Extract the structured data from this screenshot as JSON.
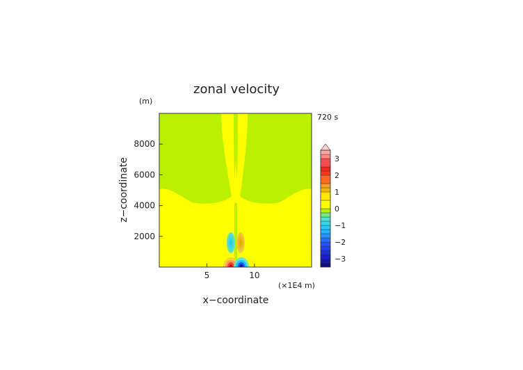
{
  "chart_data": {
    "type": "heatmap",
    "title": "zonal velocity",
    "time_label": "720 s",
    "xlabel": "x−coordinate",
    "ylabel": "z−coordinate",
    "x_units": "(×1E4 m)",
    "y_units": "(m)",
    "xlim": [
      0,
      16
    ],
    "ylim": [
      0,
      10000
    ],
    "x_ticks": [
      5,
      10
    ],
    "y_ticks": [
      2000,
      4000,
      6000,
      8000
    ],
    "colorbar": {
      "levels": [
        -3.5,
        -3.25,
        -3,
        -2.75,
        -2.5,
        -2.25,
        -2,
        -1.75,
        -1.5,
        -1.25,
        -1,
        -0.75,
        -0.5,
        -0.25,
        0,
        0.5,
        1,
        1.25,
        1.5,
        2,
        2.25,
        2.5,
        3,
        3.25,
        3.5
      ],
      "tick_labels": [
        "3",
        "2",
        "1",
        "0",
        "−1",
        "−2",
        "−3"
      ],
      "tick_values": [
        3,
        2,
        1,
        0,
        -1,
        -2,
        -3
      ]
    },
    "regions": [
      {
        "name": "background",
        "value": 0.25
      },
      {
        "name": "upper-region",
        "value": -0.25
      },
      {
        "name": "central-upper-jet",
        "value": 0.25
      },
      {
        "name": "left-lower-lobe",
        "value": -1.2
      },
      {
        "name": "right-lower-lobe",
        "value": 1.2
      },
      {
        "name": "surface-dipole-left",
        "value": 3.3
      },
      {
        "name": "surface-dipole-right",
        "value": -3.3
      }
    ],
    "colors": {
      "yellow": "#ffff00",
      "green": "#bbf000",
      "cyan": "#33e6cc",
      "blue": "#1e90ff",
      "orange": "#e6b000",
      "red": "#ff3020"
    }
  }
}
